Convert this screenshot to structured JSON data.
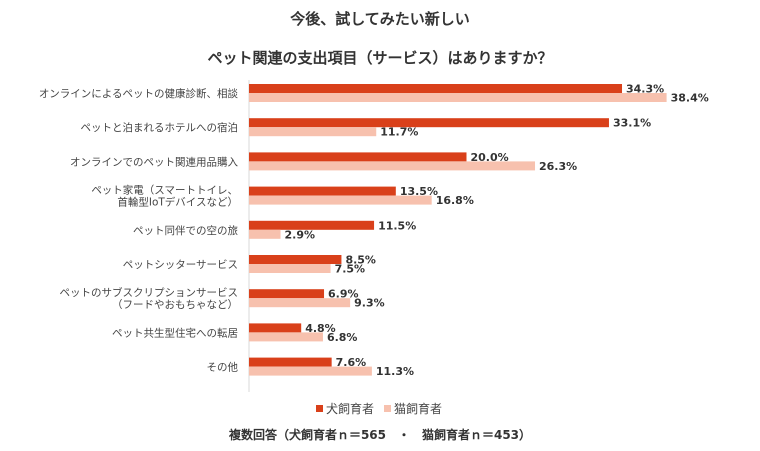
{
  "chart_data": {
    "type": "bar",
    "orientation": "horizontal",
    "title_line1": "今後、試してみたい新しい",
    "title_line2": "ペット関連の支出項目（サービス）はありますか？",
    "categories": [
      [
        "オンラインによるペットの健康診断、相談"
      ],
      [
        "ペットと泊まれるホテルへの宿泊"
      ],
      [
        "オンラインでのペット関連用品購入"
      ],
      [
        "ペット家電（スマートトイレ、",
        "首輪型IoTデバイスなど）"
      ],
      [
        "ペット同伴での空の旅"
      ],
      [
        "ペットシッターサービス"
      ],
      [
        "ペットのサブスクリプションサービス",
        "（フードやおもちゃなど）"
      ],
      [
        "ペット共生型住宅への転居"
      ],
      [
        "その他"
      ]
    ],
    "series": [
      {
        "name": "犬飼育者",
        "color": "#d9401a",
        "values": [
          34.3,
          33.1,
          20.0,
          13.5,
          11.5,
          8.5,
          6.9,
          4.8,
          7.6
        ]
      },
      {
        "name": "猫飼育者",
        "color": "#f7c1ae",
        "values": [
          38.4,
          11.7,
          26.3,
          16.8,
          2.9,
          7.5,
          9.3,
          6.8,
          11.3
        ]
      }
    ],
    "value_suffix": "%",
    "xlim": [
      0,
      40
    ],
    "footnote": "複数回答（犬飼育者ｎ＝565　・　猫飼育者ｎ＝453）"
  }
}
